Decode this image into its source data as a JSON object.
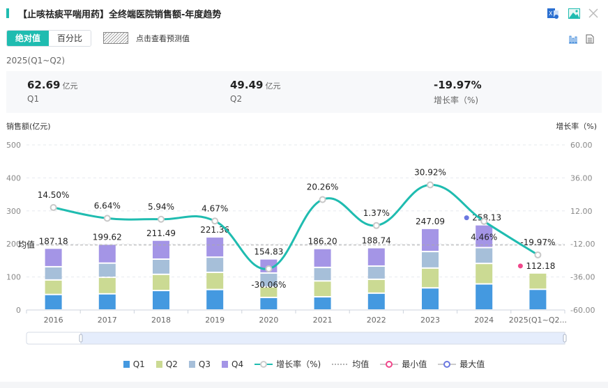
{
  "header": {
    "title": "【止咳祛痰平喘用药】全终端医院销售额-年度趋势",
    "icons": [
      "excel-export-icon",
      "image-export-icon",
      "close-icon"
    ]
  },
  "toolbar": {
    "toggle": [
      "绝对值",
      "百分比"
    ],
    "active_toggle": "绝对值",
    "forecast_label": "点击查看预测值",
    "view_icons": [
      "bar-chart-icon",
      "table-view-icon"
    ]
  },
  "period": "2025(Q1~Q2)",
  "summary": [
    {
      "value": "62.69",
      "unit": "亿元",
      "label": "Q1"
    },
    {
      "value": "49.49",
      "unit": "亿元",
      "label": "Q2"
    },
    {
      "value": "-19.97%",
      "unit": "",
      "label": "增长率（%)"
    }
  ],
  "colors": {
    "accent": "#1fbcb0",
    "q1": "#4499e0",
    "q2": "#cbda93",
    "q3": "#a6bfd9",
    "q4": "#a495e6",
    "growth": "#1fbcb0",
    "min": "#f0468a",
    "max": "#6b78e0"
  },
  "chart_data": {
    "type": "bar",
    "title": "【止咳祛痰平喘用药】全终端医院销售额-年度趋势",
    "ylabel": "销售额(亿元)",
    "y2label": "增长率（%)",
    "ylim": [
      0,
      500
    ],
    "yticks": [
      "0",
      "100",
      "200",
      "300",
      "400",
      "500"
    ],
    "y2lim": [
      -60,
      60
    ],
    "y2ticks": [
      "-60.00",
      "-36.00",
      "-12.00",
      "12.00",
      "36.00",
      "60.00"
    ],
    "categories": [
      "2016",
      "2017",
      "2018",
      "2019",
      "2020",
      "2021",
      "2022",
      "2023",
      "2024",
      "2025(Q1~Q2..."
    ],
    "series": [
      {
        "name": "Q1",
        "values": [
          47,
          49,
          59,
          62,
          38,
          40,
          51,
          67,
          79,
          62.69
        ]
      },
      {
        "name": "Q2",
        "values": [
          44,
          50,
          49,
          52,
          32,
          48,
          42,
          60,
          62,
          49.49
        ]
      },
      {
        "name": "Q3",
        "values": [
          40,
          43,
          46,
          46,
          42,
          41,
          40,
          50,
          48,
          null
        ]
      },
      {
        "name": "Q4",
        "values": [
          56.18,
          57.62,
          57.49,
          61.36,
          42.83,
          57.2,
          55.74,
          70.09,
          69.13,
          null
        ]
      }
    ],
    "totals": [
      "187.18",
      "199.62",
      "211.49",
      "221.36",
      "154.83",
      "186.20",
      "188.74",
      "247.09",
      "258.13",
      "112.18"
    ],
    "growth": {
      "name": "增长率（%)",
      "values": [
        14.5,
        6.64,
        5.94,
        4.67,
        -30.06,
        20.26,
        1.37,
        30.92,
        4.46,
        -19.97
      ],
      "labels": [
        "14.50%",
        "6.64%",
        "5.94%",
        "4.67%",
        "-30.06%",
        "20.26%",
        "1.37%",
        "30.92%",
        "4.46%",
        "-19.97%"
      ]
    },
    "average": {
      "label": "均值",
      "value": 196.8
    },
    "min_marker": {
      "category": "2025(Q1~Q2...",
      "value": "112.18"
    },
    "max_marker": {
      "category": "2024",
      "value": "258.13"
    },
    "grid": true,
    "legend_position": "bottom",
    "legend": [
      "Q1",
      "Q2",
      "Q3",
      "Q4",
      "增长率（%)",
      "均值",
      "最小值",
      "最大值"
    ]
  }
}
